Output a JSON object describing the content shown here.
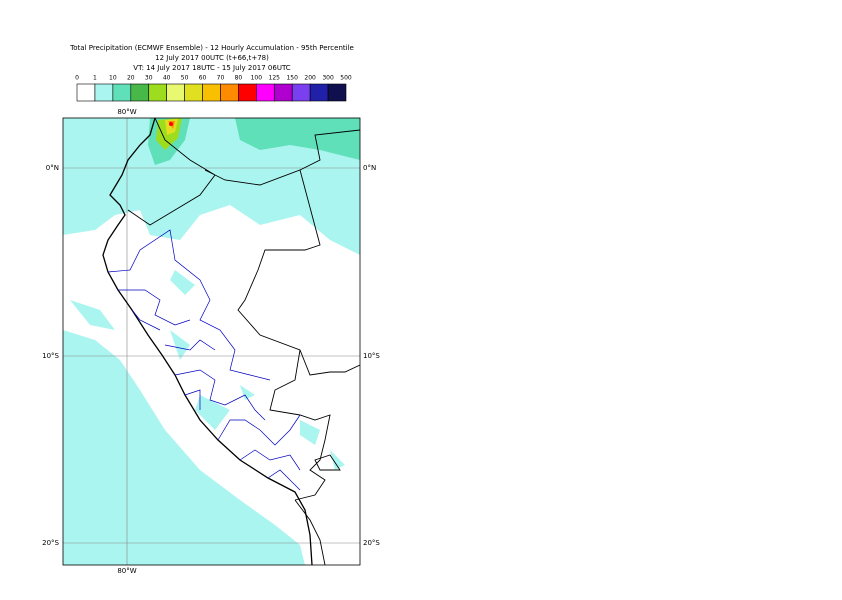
{
  "header": {
    "lines": [
      "Total Precipitation (ECMWF Ensemble) - 12 Hourly Accumulation - 95th Percentile",
      "12 July 2017 00UTC (t+66,t+78)",
      "VT: 14 July 2017 18UTC - 15 July 2017 06UTC"
    ]
  },
  "legend": {
    "labels": [
      0,
      1,
      10,
      20,
      30,
      40,
      50,
      60,
      70,
      80,
      100,
      125,
      150,
      200,
      300,
      500
    ],
    "colors": [
      "#ffffff",
      "#aaf5f0",
      "#5fe0b8",
      "#48b848",
      "#9edc1e",
      "#e8f870",
      "#e0e020",
      "#f8c000",
      "#ff8c00",
      "#ff0000",
      "#ff00ff",
      "#b000d0",
      "#7a40f0",
      "#2020a8",
      "#10104e"
    ]
  },
  "map": {
    "lon_labels": [
      "80°W",
      "80°W"
    ],
    "lat_labels": [
      "0°N",
      "0°N",
      "10°S",
      "10°S",
      "20°S",
      "20°S"
    ]
  }
}
